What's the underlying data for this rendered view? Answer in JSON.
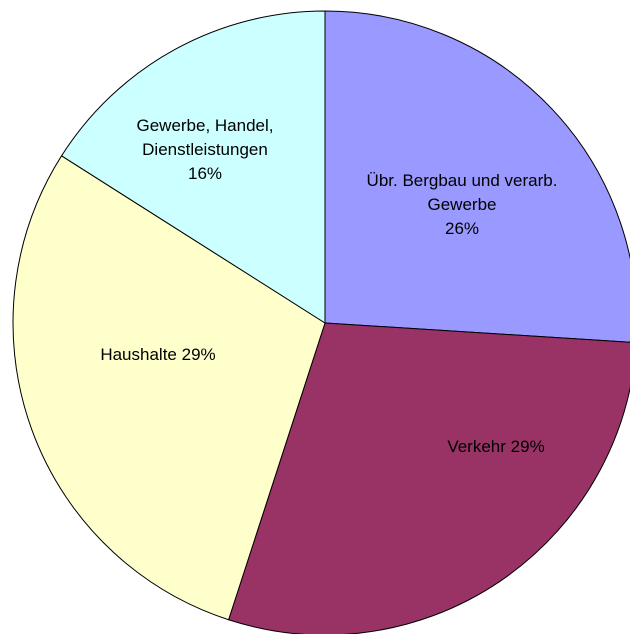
{
  "chart_data": {
    "type": "pie",
    "categories": [
      "Übr. Bergbau und verarb. Gewerbe",
      "Verkehr",
      "Haushalte",
      "Gewerbe, Handel, Dienstleistungen"
    ],
    "values": [
      26,
      29,
      29,
      16
    ],
    "value_labels": [
      "26%",
      "29%",
      "29%",
      "16%"
    ],
    "colors": [
      "#9999ff",
      "#993366",
      "#ffffcc",
      "#ccffff"
    ]
  }
}
